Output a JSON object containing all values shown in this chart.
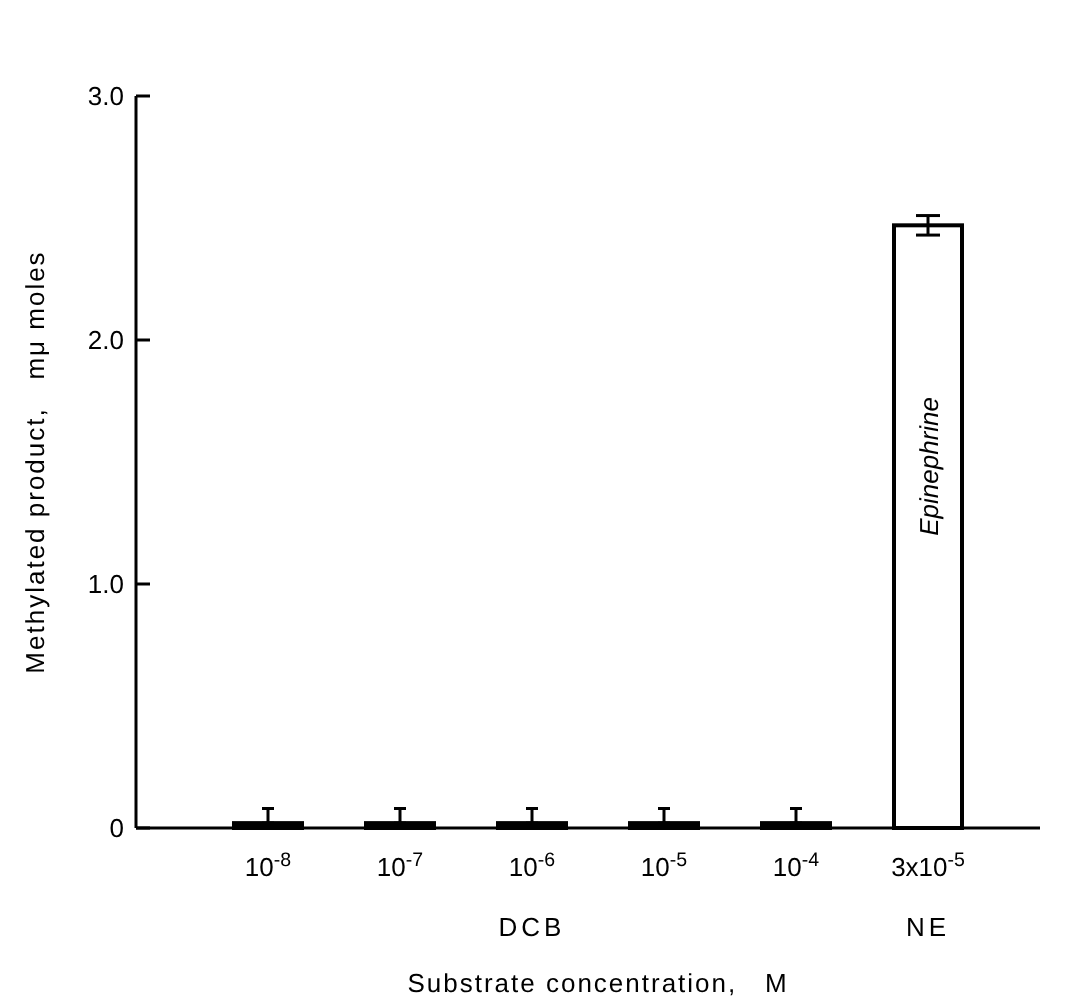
{
  "chart_data": {
    "type": "bar",
    "xlabel": "Substrate concentration,   M",
    "ylabel": "Methylated product,   mμ moles",
    "categories": [
      "10$^{-8}$",
      "10$^{-7}$",
      "10$^{-6}$",
      "10$^{-5}$",
      "10$^{-4}$",
      "3x10$^{-5}$"
    ],
    "values": [
      0.02,
      0.02,
      0.02,
      0.02,
      0.02,
      2.47
    ],
    "errors": [
      [
        0.02,
        0.08
      ],
      [
        0.02,
        0.08
      ],
      [
        0.02,
        0.08
      ],
      [
        0.02,
        0.08
      ],
      [
        0.02,
        0.08
      ],
      0.04
    ],
    "colors": [
      "#000000",
      "#000000",
      "#000000",
      "#000000",
      "#000000",
      "#ffffff"
    ],
    "ylim": [
      0,
      3
    ],
    "yticks": [
      0,
      {
        "value": 1,
        "label": "1.0"
      },
      {
        "value": 2,
        "label": "2.0"
      },
      {
        "value": 3,
        "label": "3.0"
      }
    ],
    "annotations": [
      "DCB",
      "NE",
      "Epinephrine"
    ]
  }
}
